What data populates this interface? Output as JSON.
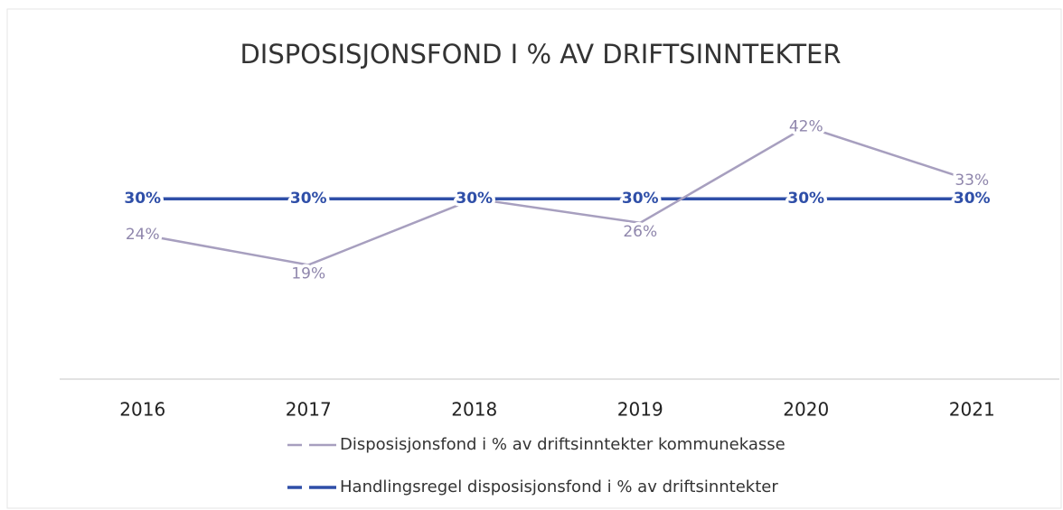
{
  "chart_data": {
    "type": "line",
    "title": "DISPOSISJONSFOND I % AV DRIFTSINNTEKTER",
    "categories": [
      "2016",
      "2017",
      "2018",
      "2019",
      "2020",
      "2021"
    ],
    "ylim": [
      0,
      50
    ],
    "series": [
      {
        "name": "Disposisjonsfond i % av driftsinntekter kommunekasse",
        "color": "#a79fbf",
        "values": [
          24,
          19,
          30,
          26,
          42,
          33
        ],
        "value_labels": [
          "24%",
          "19%",
          "30%",
          "26%",
          "42%",
          "33%"
        ]
      },
      {
        "name": "Handlingsregel disposisjonsfond i % av driftsinntekter",
        "color": "#2f4fa8",
        "values": [
          30,
          30,
          30,
          30,
          30,
          30
        ],
        "value_labels": [
          "30%",
          "30%",
          "30%",
          "30%",
          "30%",
          "30%"
        ]
      }
    ]
  }
}
